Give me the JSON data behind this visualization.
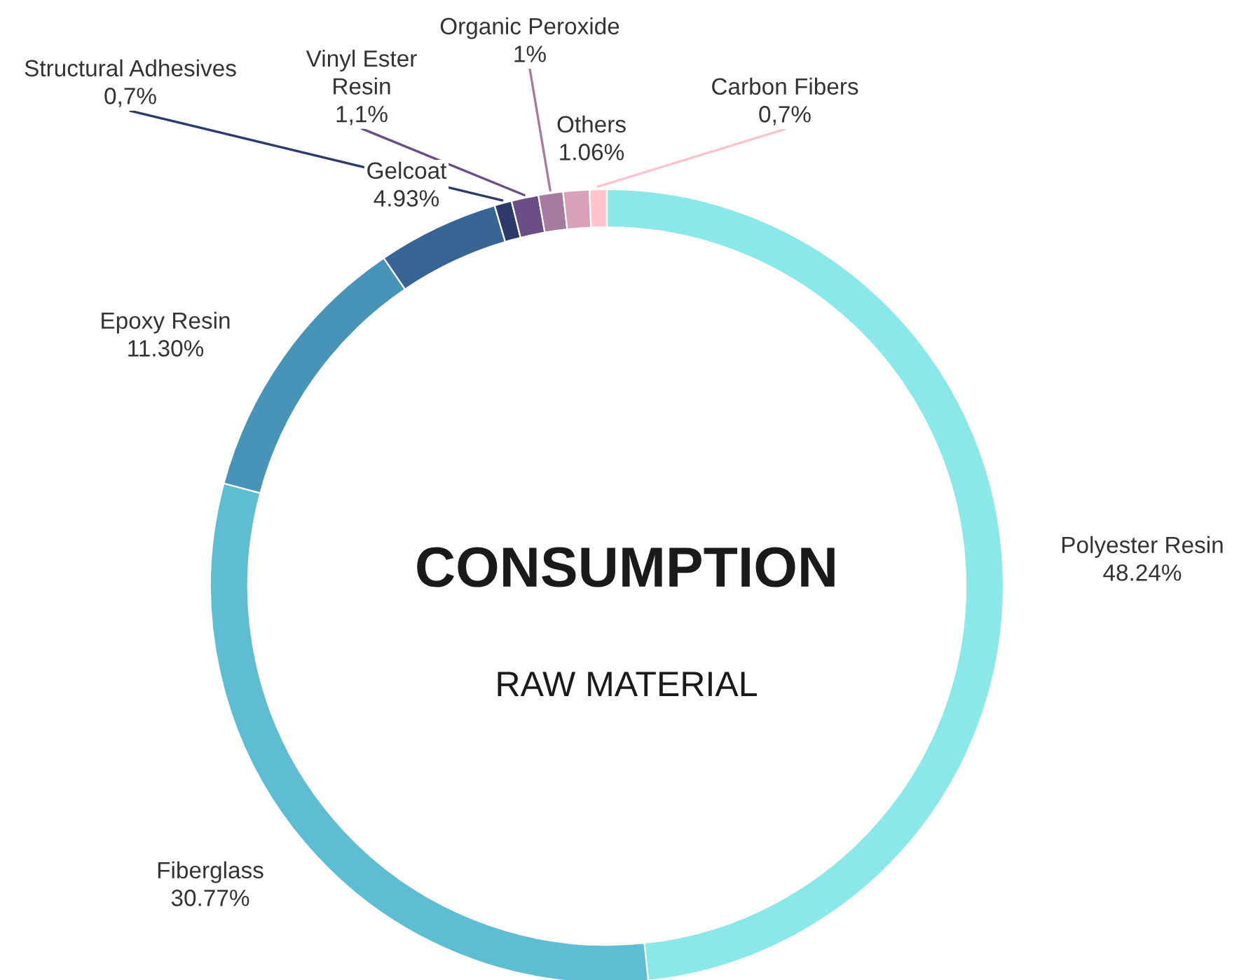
{
  "chart_data": {
    "type": "donut",
    "title": "CONSUMPTION",
    "subtitle": "RAW MATERIAL",
    "categories": [
      "Polyester Resin",
      "Fiberglass",
      "Epoxy Resin",
      "Gelcoat",
      "Structural Adhesives",
      "Vinyl Ester\nResin",
      "Organic Peroxide",
      "Others",
      "Carbon Fibers"
    ],
    "values": [
      48.24,
      30.77,
      11.3,
      4.93,
      0.7,
      1.1,
      1,
      1.06,
      0.7
    ],
    "value_labels": [
      "48.24%",
      "30.77%",
      "11.30%",
      "4.93%",
      "0,7%",
      "1,1%",
      "1%",
      "1.06%",
      "0,7%"
    ],
    "colors": [
      "#8ae8e8",
      "#5fbdd3",
      "#4893b8",
      "#386496",
      "#2e3a6b",
      "#6a4e85",
      "#a77aa0",
      "#d9a0b8",
      "#ffc4cb"
    ],
    "legend": false
  }
}
